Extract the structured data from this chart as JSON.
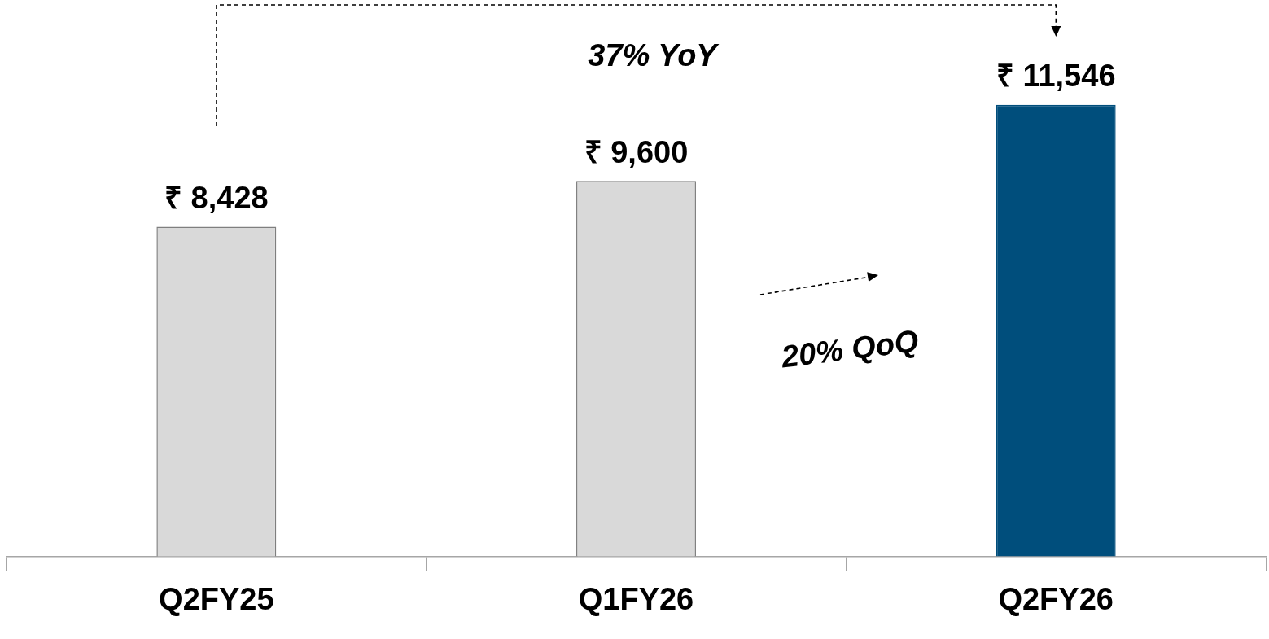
{
  "chart_data": {
    "type": "bar",
    "categories": [
      "Q2FY25",
      "Q1FY26",
      "Q2FY26"
    ],
    "values": [
      8428,
      9600,
      11546
    ],
    "colors": [
      "#d9d9d9",
      "#d9d9d9",
      "#004e7c"
    ],
    "value_labels": [
      "₹ 8,428",
      "₹ 9,600",
      "₹ 11,546"
    ],
    "grid": false,
    "legend": false,
    "annotations": [
      "37% YoY",
      "20% QoQ"
    ]
  }
}
